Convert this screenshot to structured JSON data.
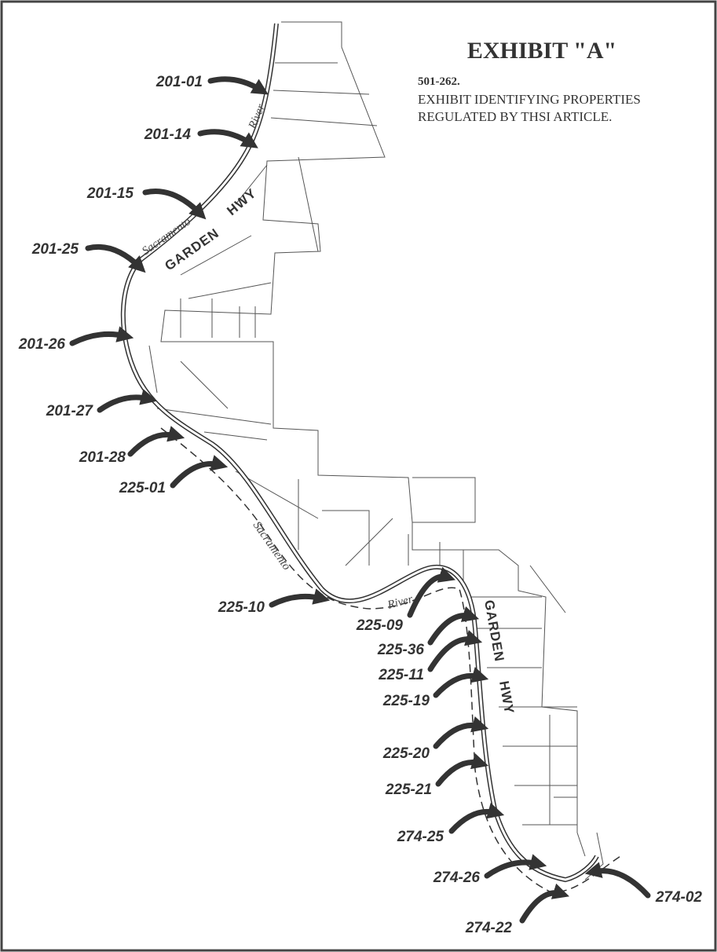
{
  "header": {
    "title": "EXHIBIT \"A\"",
    "section": "501-262.",
    "lines": [
      "EXHIBIT IDENTIFYING PROPERTIES",
      "REGULATED BY THSI ARTICLE."
    ]
  },
  "map": {
    "parcels": [
      "201-01",
      "201-14",
      "201-15",
      "201-25",
      "201-26",
      "201-27",
      "201-28",
      "225-01",
      "225-10",
      "225-09",
      "225-36",
      "225-11",
      "225-19",
      "225-20",
      "225-21",
      "274-25",
      "274-26",
      "274-22",
      "274-02"
    ],
    "river_labels": [
      "River",
      "Sacramento",
      "Sacramento",
      "River"
    ],
    "road_labels": [
      "GARDEN",
      "HWY",
      "GARDEN",
      "HWY"
    ]
  }
}
